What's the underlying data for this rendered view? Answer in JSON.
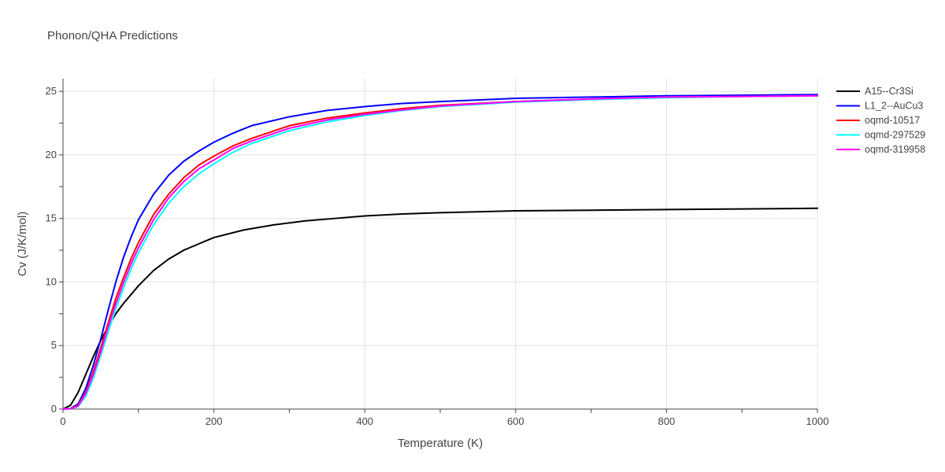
{
  "chart_data": {
    "type": "line",
    "title": "Phonon/QHA Predictions",
    "xlabel": "Temperature (K)",
    "ylabel": "Cv (J/K/mol)",
    "xlim": [
      0,
      1000
    ],
    "ylim": [
      0,
      26
    ],
    "x_ticks": [
      0,
      200,
      400,
      600,
      800,
      1000
    ],
    "y_ticks": [
      0,
      5,
      10,
      15,
      20,
      25
    ],
    "grid": true,
    "legend_position": "top-right",
    "series": [
      {
        "name": "A15--Cr3Si",
        "color": "#000000",
        "x": [
          0,
          10,
          20,
          30,
          40,
          50,
          60,
          70,
          80,
          100,
          120,
          140,
          160,
          180,
          200,
          240,
          280,
          320,
          360,
          400,
          450,
          500,
          600,
          700,
          800,
          900,
          1000
        ],
        "y": [
          0,
          0.3,
          1.3,
          2.7,
          4.1,
          5.4,
          6.5,
          7.5,
          8.3,
          9.7,
          10.9,
          11.8,
          12.5,
          13.0,
          13.5,
          14.1,
          14.5,
          14.8,
          15.0,
          15.2,
          15.35,
          15.45,
          15.6,
          15.65,
          15.7,
          15.75,
          15.8
        ]
      },
      {
        "name": "L1_2--AuCu3",
        "color": "#0000ff",
        "x": [
          0,
          10,
          20,
          30,
          40,
          50,
          60,
          70,
          80,
          90,
          100,
          120,
          140,
          160,
          180,
          200,
          225,
          250,
          300,
          350,
          400,
          450,
          500,
          600,
          700,
          800,
          900,
          1000
        ],
        "y": [
          0,
          0.05,
          0.4,
          1.6,
          3.4,
          5.5,
          7.8,
          10.0,
          11.9,
          13.5,
          14.9,
          16.9,
          18.4,
          19.5,
          20.3,
          21.0,
          21.7,
          22.3,
          23.0,
          23.5,
          23.8,
          24.05,
          24.2,
          24.45,
          24.55,
          24.65,
          24.7,
          24.75
        ]
      },
      {
        "name": "oqmd-10517",
        "color": "#ff0000",
        "x": [
          0,
          10,
          20,
          30,
          40,
          50,
          60,
          70,
          80,
          90,
          100,
          120,
          140,
          160,
          180,
          200,
          225,
          250,
          300,
          350,
          400,
          450,
          500,
          600,
          700,
          800,
          900,
          1000
        ],
        "y": [
          0,
          0.03,
          0.3,
          1.3,
          2.9,
          4.8,
          6.8,
          8.7,
          10.3,
          11.8,
          13.1,
          15.3,
          16.9,
          18.2,
          19.2,
          19.9,
          20.7,
          21.3,
          22.3,
          22.9,
          23.3,
          23.65,
          23.9,
          24.2,
          24.4,
          24.55,
          24.6,
          24.65
        ]
      },
      {
        "name": "oqmd-297529",
        "color": "#00ffff",
        "x": [
          0,
          10,
          20,
          30,
          40,
          50,
          60,
          70,
          80,
          90,
          100,
          120,
          140,
          160,
          180,
          200,
          225,
          250,
          300,
          350,
          400,
          450,
          500,
          600,
          700,
          800,
          900,
          1000
        ],
        "y": [
          0,
          0.02,
          0.2,
          1.0,
          2.4,
          4.2,
          6.1,
          7.9,
          9.5,
          11.0,
          12.3,
          14.5,
          16.2,
          17.5,
          18.5,
          19.3,
          20.2,
          20.9,
          21.9,
          22.6,
          23.1,
          23.5,
          23.8,
          24.15,
          24.35,
          24.5,
          24.6,
          24.65
        ]
      },
      {
        "name": "oqmd-319958",
        "color": "#ff00ff",
        "x": [
          0,
          10,
          20,
          30,
          40,
          50,
          60,
          70,
          80,
          90,
          100,
          120,
          140,
          160,
          180,
          200,
          225,
          250,
          300,
          350,
          400,
          450,
          500,
          600,
          700,
          800,
          900,
          1000
        ],
        "y": [
          0,
          0.02,
          0.25,
          1.2,
          2.7,
          4.5,
          6.5,
          8.3,
          9.9,
          11.4,
          12.7,
          14.9,
          16.6,
          17.9,
          18.9,
          19.6,
          20.5,
          21.1,
          22.1,
          22.75,
          23.2,
          23.55,
          23.85,
          24.2,
          24.4,
          24.55,
          24.6,
          24.65
        ]
      }
    ]
  }
}
